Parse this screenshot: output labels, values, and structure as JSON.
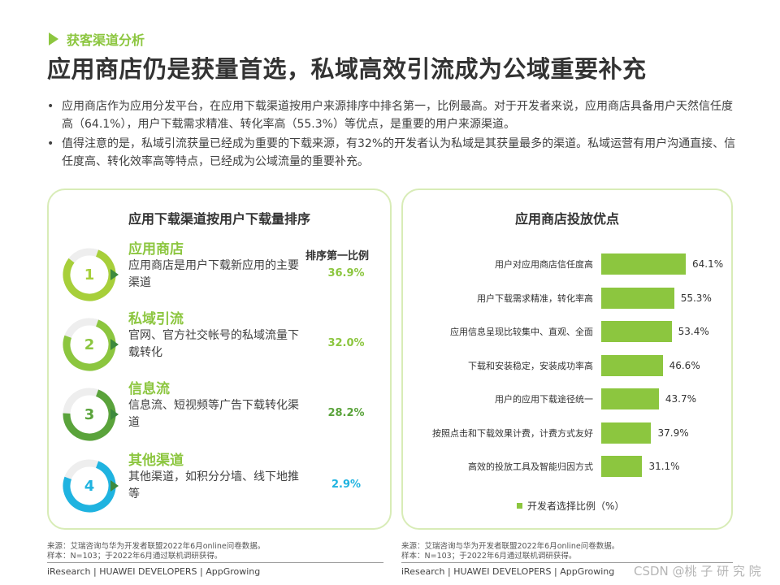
{
  "section_tag": "获客渠道分析",
  "title": "应用商店仍是获量首选，私域高效引流成为公域重要补充",
  "bullets": [
    "应用商店作为应用分发平台，在应用下载渠道按用户来源排序中排名第一，比例最高。对于开发者来说，应用商店具备用户天然信任度高（64.1%），用户下载需求精准、转化率高（55.3%）等优点，是重要的用户来源渠道。",
    "值得注意的是，私域引流获量已经成为重要的下载来源，有32%的开发者认为私域是其获量最多的渠道。私域运营有用户沟通直接、信任度高、转化效率高等特点，已经成为公域流量的重要补充。"
  ],
  "left_panel": {
    "title": "应用下载渠道按用户下载量排序",
    "rank_header": "排序第一比例",
    "channels": [
      {
        "num": "1",
        "name": "应用商店",
        "desc": "应用商店是用户下载新应用的主要渠道",
        "pct": "36.9%",
        "color": "#a7cf3a",
        "pct_color": "#8cc63f",
        "fill": 0.8
      },
      {
        "num": "2",
        "name": "私域引流",
        "desc": "官网、官方社交帐号的私域流量下载转化",
        "pct": "32.0%",
        "color": "#8cc63f",
        "pct_color": "#8cc63f",
        "fill": 0.75
      },
      {
        "num": "3",
        "name": "信息流",
        "desc": "信息流、短视频等广告下载转化渠道",
        "pct": "28.2%",
        "color": "#5aa33b",
        "pct_color": "#5aa33b",
        "fill": 0.7
      },
      {
        "num": "4",
        "name": "其他渠道",
        "desc": "其他渠道，如积分分墙、线下地推等",
        "pct": "2.9%",
        "color": "#1fb3e0",
        "pct_color": "#1fb3e0",
        "fill": 0.75
      }
    ]
  },
  "right_panel": {
    "title": "应用商店投放优点",
    "legend": "开发者选择比例（%）",
    "chart_data": {
      "type": "bar",
      "orientation": "horizontal",
      "categories": [
        "用户对应用商店信任度高",
        "用户下载需求精准，转化率高",
        "应用信息呈现比较集中、直观、全面",
        "下载和安装稳定，安装成功率高",
        "用户的应用下载途径统一",
        "按照点击和下载效果计费，计费方式友好",
        "高效的投放工具及智能归因方式"
      ],
      "values": [
        64.1,
        55.3,
        53.4,
        46.6,
        43.7,
        37.9,
        31.1
      ],
      "value_labels": [
        "64.1%",
        "55.3%",
        "53.4%",
        "46.6%",
        "43.7%",
        "37.9%",
        "31.1%"
      ],
      "series": [
        {
          "name": "开发者选择比例（%）",
          "values": [
            64.1,
            55.3,
            53.4,
            46.6,
            43.7,
            37.9,
            31.1
          ]
        }
      ],
      "color": "#8cc63f",
      "xlim": [
        0,
        70
      ],
      "legend_position": "bottom"
    }
  },
  "footer": {
    "source_left": "来源：艾瑞咨询与华为开发者联盟2022年6月online问卷数据。",
    "sample_left": "样本：N=103；于2022年6月通过联机调研获得。",
    "source_right": "来源：艾瑞咨询与华为开发者联盟2022年6月online问卷数据。",
    "sample_right": "样本：N=103；于2022年6月通过联机调研获得。",
    "brand_left": "iResearch | HUAWEI DEVELOPERS | AppGrowing",
    "brand_right": "iResearch | HUAWEI DEVELOPERS | AppGrowing",
    "watermark": "CSDN @桃 子 研 究 院"
  }
}
